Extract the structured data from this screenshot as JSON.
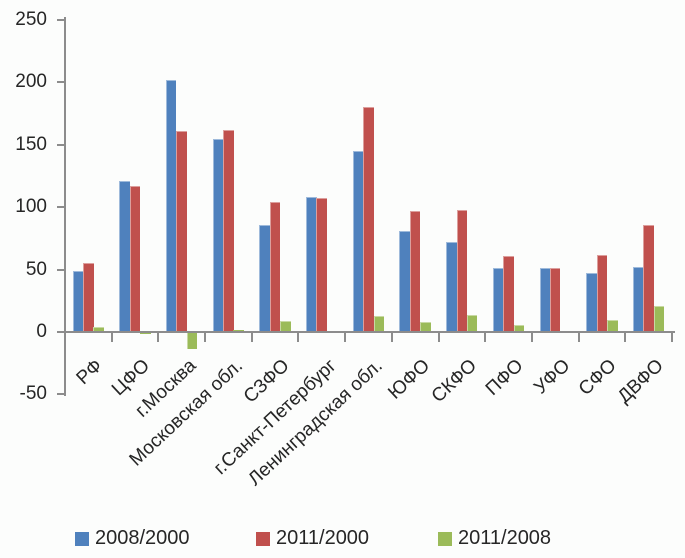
{
  "chart_data": {
    "type": "bar",
    "categories": [
      "РФ",
      "ЦФО",
      "г.Москва",
      "Московская обл.",
      "СЗФО",
      "г.Санкт-Петербург",
      "Ленинградская обл.",
      "ЮФО",
      "СКФО",
      "ПФО",
      "УФО",
      "СФО",
      "ДВФО"
    ],
    "series": [
      {
        "name": "2008/2000",
        "color": "#4F81BD",
        "values": [
          49,
          121,
          202,
          155,
          86,
          108,
          145,
          81,
          72,
          51,
          51,
          47,
          52
        ]
      },
      {
        "name": "2011/2000",
        "color": "#C0504D",
        "values": [
          55,
          117,
          161,
          162,
          104,
          107,
          180,
          97,
          98,
          61,
          51,
          62,
          86
        ]
      },
      {
        "name": "2011/2008",
        "color": "#9BBB59",
        "values": [
          4,
          -2,
          -14,
          2,
          9,
          0,
          13,
          8,
          14,
          6,
          0,
          10,
          21
        ]
      }
    ],
    "ylim": [
      -50,
      250
    ],
    "yticks": [
      250,
      200,
      150,
      100,
      50,
      0,
      -50
    ],
    "grid": false,
    "legend_position": "bottom",
    "axis_color": "#8C8C8C",
    "text_color": "#262626",
    "background": "#FCFDFC"
  }
}
